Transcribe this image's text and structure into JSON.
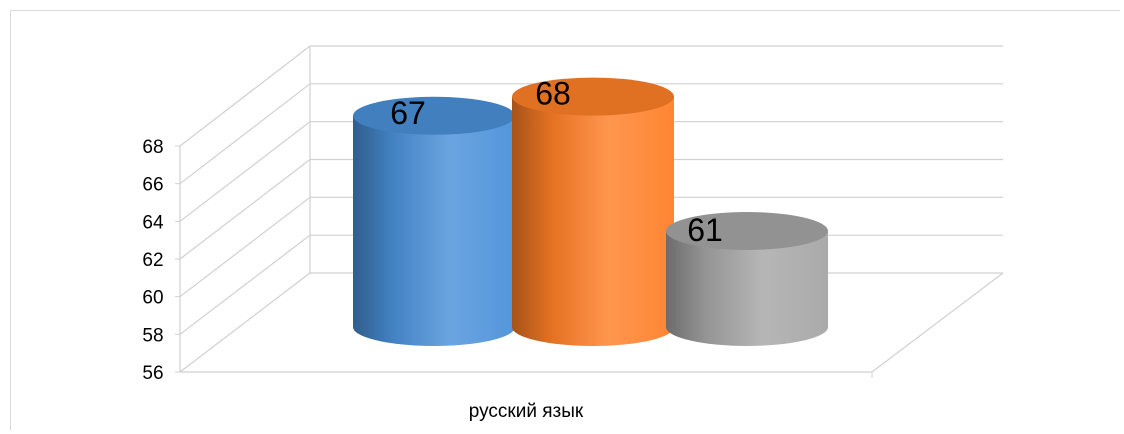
{
  "chart_data": {
    "type": "bar",
    "style": "3d-cylinder",
    "categories": [
      "русский язык"
    ],
    "series": [
      {
        "values": [
          67
        ],
        "color": "#4a90d9"
      },
      {
        "values": [
          68
        ],
        "color": "#ff7f27"
      },
      {
        "values": [
          61
        ],
        "color": "#a6a6a6"
      }
    ],
    "data_labels": [
      "67",
      "68",
      "61"
    ],
    "ylim": [
      56,
      68
    ],
    "yticks": [
      56,
      58,
      60,
      62,
      64,
      66,
      68
    ],
    "grid": true,
    "legend": "none"
  }
}
